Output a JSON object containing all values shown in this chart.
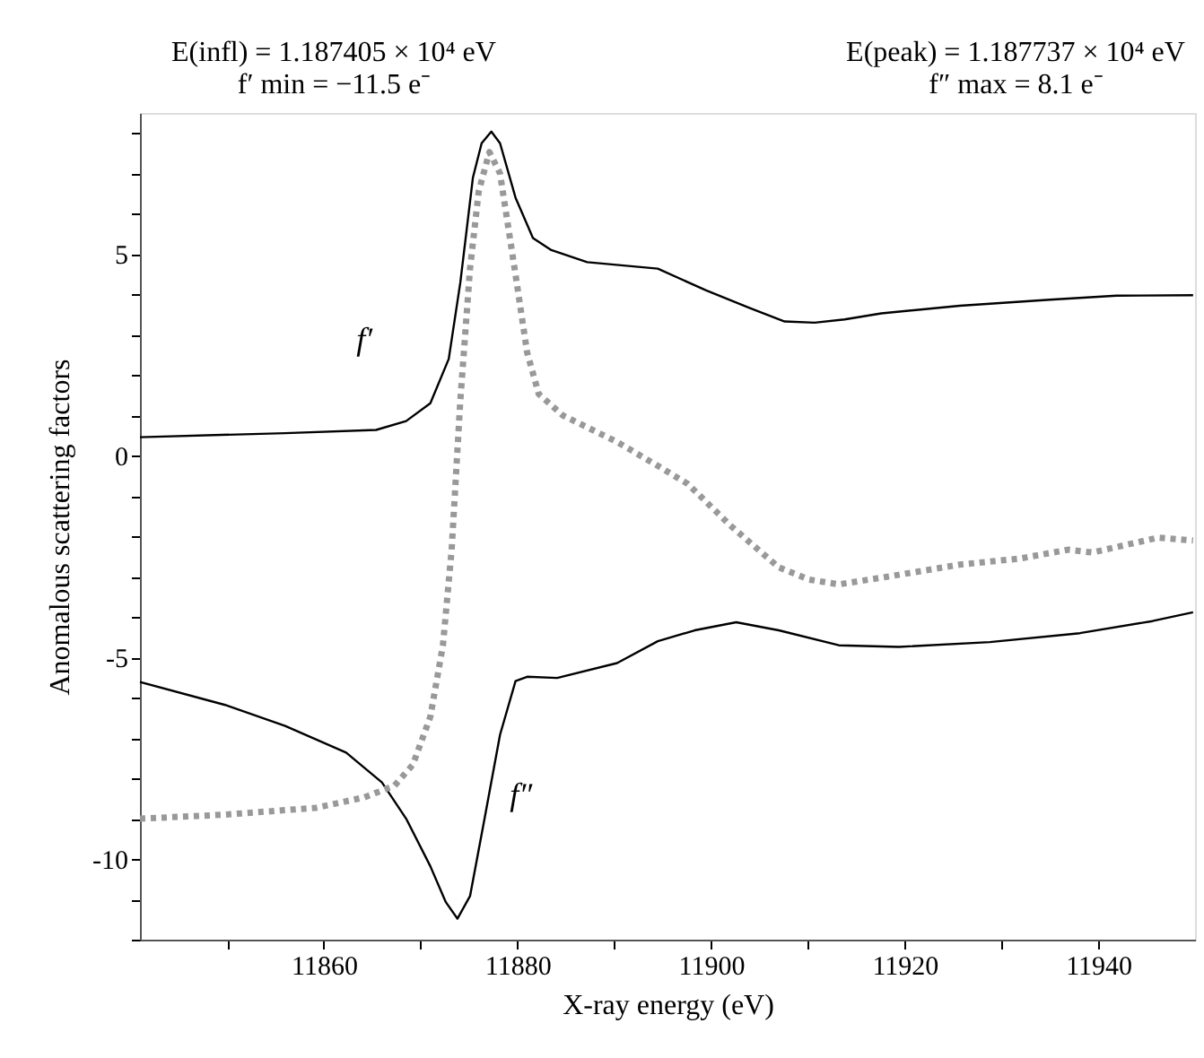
{
  "chart_data": {
    "type": "line",
    "xlabel": "X-ray energy (eV)",
    "ylabel": "Anomalous scattering factors",
    "xlim": [
      11841,
      11950
    ],
    "ylim": [
      -12,
      8.5
    ],
    "xticks": [
      {
        "value": 11850,
        "label": null
      },
      11860,
      {
        "value": 11870,
        "label": null
      },
      11880,
      {
        "value": 11890,
        "label": null
      },
      11900,
      {
        "value": 11910,
        "label": null
      },
      11920,
      {
        "value": 11930,
        "label": null
      },
      11940
    ],
    "yticks": [
      {
        "value": -12,
        "label": null
      },
      {
        "value": -11,
        "label": null
      },
      -10,
      {
        "value": -9,
        "label": null
      },
      {
        "value": -8,
        "label": null
      },
      {
        "value": -7,
        "label": null
      },
      {
        "value": -6,
        "label": null
      },
      -5,
      {
        "value": -4,
        "label": null
      },
      {
        "value": -3,
        "label": null
      },
      {
        "value": -2,
        "label": null
      },
      {
        "value": -1,
        "label": null
      },
      0,
      {
        "value": 1,
        "label": null
      },
      {
        "value": 2,
        "label": null
      },
      {
        "value": 3,
        "label": null
      },
      {
        "value": 4,
        "label": null
      },
      5,
      {
        "value": 6,
        "label": null
      },
      {
        "value": 7,
        "label": null
      },
      {
        "value": 8,
        "label": null
      }
    ],
    "grid": false,
    "marker": "none",
    "series": [
      {
        "name": "f′",
        "color": "#000000",
        "line_style": "solid",
        "x": [
          11841,
          11856,
          11865.4,
          11868.5,
          11871,
          11872.9,
          11874.1,
          11875.4,
          11876.3,
          11877.3,
          11878.2,
          11879.8,
          11881.6,
          11883.5,
          11887.2,
          11894.5,
          11899.5,
          11903.9,
          11907.6,
          11910.7,
          11913.8,
          11917.6,
          11925.7,
          11935,
          11941.9,
          11949.8
        ],
        "values": [
          0.46,
          0.56,
          0.64,
          0.86,
          1.3,
          2.4,
          4.3,
          6.9,
          7.75,
          8.04,
          7.75,
          6.4,
          5.4,
          5.1,
          4.8,
          4.64,
          4.1,
          3.67,
          3.33,
          3.3,
          3.38,
          3.53,
          3.72,
          3.87,
          3.97,
          3.98
        ]
      },
      {
        "name": "f″",
        "color": "#000000",
        "line_style": "solid",
        "x": [
          11841,
          11849.8,
          11856,
          11862.3,
          11866,
          11868.5,
          11871,
          11872.6,
          11873.8,
          11875.1,
          11876.6,
          11878.2,
          11879.8,
          11881,
          11884.1,
          11890.3,
          11894.5,
          11898.3,
          11902.6,
          11907,
          11913.2,
          11919.4,
          11928.8,
          11938.1,
          11945.6,
          11949.8
        ],
        "values": [
          -5.61,
          -6.18,
          -6.7,
          -7.36,
          -8.1,
          -9.0,
          -10.18,
          -11.07,
          -11.48,
          -10.92,
          -9.0,
          -6.92,
          -5.59,
          -5.48,
          -5.51,
          -5.14,
          -4.6,
          -4.33,
          -4.13,
          -4.33,
          -4.7,
          -4.74,
          -4.62,
          -4.4,
          -4.1,
          -3.88
        ]
      },
      {
        "color": "#999999",
        "line_style": "dotted",
        "x": [
          11841,
          11849.8,
          11859.2,
          11864.2,
          11867.3,
          11869.2,
          11871,
          11872.3,
          11873.2,
          11874.1,
          11875.1,
          11876,
          11877.1,
          11878.2,
          11879.8,
          11881,
          11882.2,
          11884.7,
          11890.3,
          11894.5,
          11897.6,
          11902,
          11907,
          11910.1,
          11913.2,
          11918.2,
          11925.7,
          11931.9,
          11936.9,
          11939.4,
          11946.2,
          11949.8
        ],
        "values": [
          -9.0,
          -8.9,
          -8.73,
          -8.47,
          -8.18,
          -7.66,
          -6.47,
          -4.7,
          -2.33,
          1.38,
          4.64,
          6.56,
          7.53,
          7.0,
          4.49,
          2.56,
          1.53,
          1.0,
          0.34,
          -0.25,
          -0.7,
          -1.73,
          -2.77,
          -3.07,
          -3.19,
          -3.0,
          -2.7,
          -2.55,
          -2.33,
          -2.4,
          -2.03,
          -2.1
        ]
      }
    ],
    "annotations": [
      "E(infl) = 1.187405 × 10⁴ eV",
      "f′ min = −11.5 e⁻",
      "E(peak) = 1.187737 × 10⁴ eV",
      "f″ max = 8.1 e⁻"
    ]
  }
}
